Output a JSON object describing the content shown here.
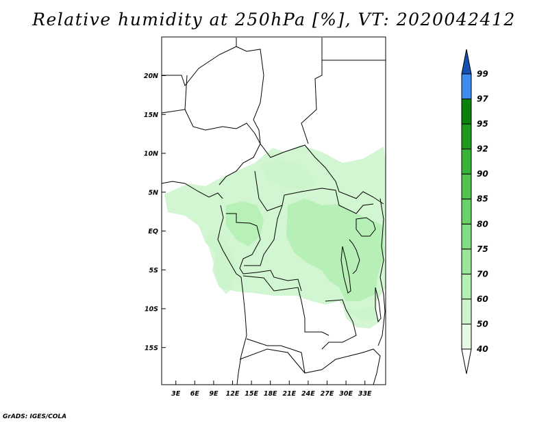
{
  "title": "Relative humidity at 250hPa [%], VT: 2020042412",
  "credit": "GrADS: IGES/COLA",
  "map": {
    "lat_ticks": [
      {
        "lat": 20,
        "label": "20N"
      },
      {
        "lat": 15,
        "label": "15N"
      },
      {
        "lat": 10,
        "label": "10N"
      },
      {
        "lat": 5,
        "label": "5N"
      },
      {
        "lat": 0,
        "label": "EQ"
      },
      {
        "lat": -5,
        "label": "5S"
      },
      {
        "lat": -10,
        "label": "10S"
      },
      {
        "lat": -15,
        "label": "15S"
      }
    ],
    "lon_ticks": [
      {
        "lon": 3,
        "label": "3E"
      },
      {
        "lon": 6,
        "label": "6E"
      },
      {
        "lon": 9,
        "label": "9E"
      },
      {
        "lon": 12,
        "label": "12E"
      },
      {
        "lon": 15,
        "label": "15E"
      },
      {
        "lon": 18,
        "label": "18E"
      },
      {
        "lon": 21,
        "label": "21E"
      },
      {
        "lon": 24,
        "label": "24E"
      },
      {
        "lon": 27,
        "label": "27E"
      },
      {
        "lon": 30,
        "label": "30E"
      },
      {
        "lon": 33,
        "label": "33E"
      }
    ]
  },
  "colorbar": {
    "levels": [
      "40",
      "50",
      "60",
      "70",
      "75",
      "80",
      "85",
      "90",
      "92",
      "95",
      "97",
      "99"
    ],
    "colors": [
      "#e6fae6",
      "#cdf5cd",
      "#b4f0b4",
      "#9be69b",
      "#82dc82",
      "#69d269",
      "#50c350",
      "#37b437",
      "#1e9b1e",
      "#0a820a",
      "#3c8cf0",
      "#1e6ed2",
      "#1450b4"
    ]
  }
}
